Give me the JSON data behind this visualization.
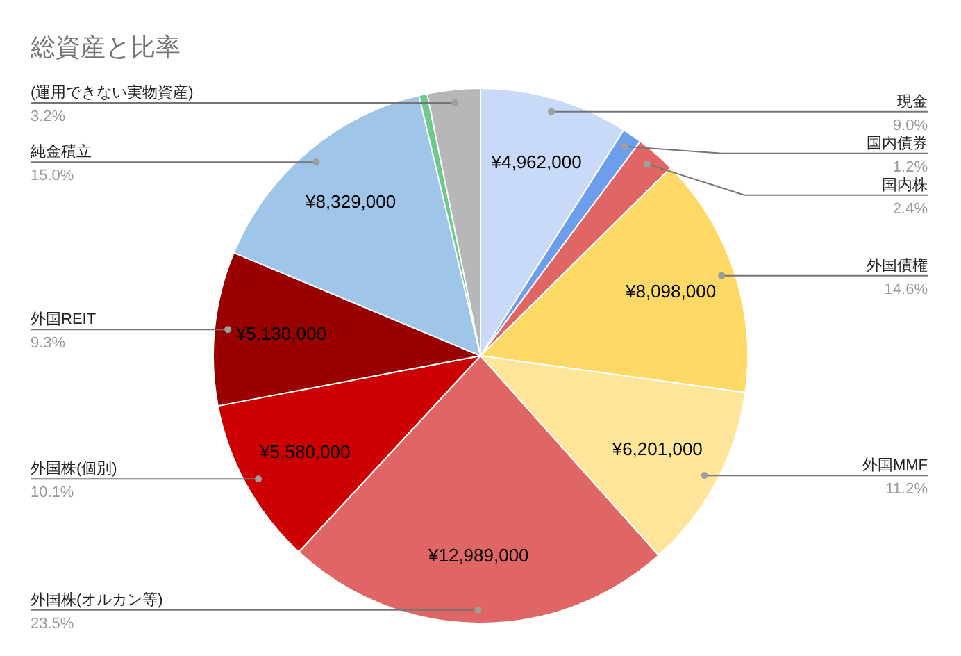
{
  "chart_data": {
    "type": "pie",
    "title": "総資産と比率",
    "categories": [
      "現金",
      "国内債券",
      "国内株",
      "外国債権",
      "外国MMF",
      "外国株(オルカン等)",
      "外国株(個別)",
      "外国REIT",
      "純金積立",
      null,
      "(運用できない実物資産)"
    ],
    "values": [
      9.0,
      1.2,
      2.4,
      14.6,
      11.2,
      23.5,
      10.1,
      9.3,
      15.0,
      0.5,
      3.2
    ],
    "colors": [
      "#c9daf8",
      "#6d9eeb",
      "#e06666",
      "#ffd966",
      "#ffe599",
      "#e06666",
      "#cc0000",
      "#990000",
      "#9fc5e8",
      "#6fc98c",
      "#b7b7b7"
    ],
    "value_labels": [
      "9.0%",
      "1.2%",
      "2.4%",
      "14.6%",
      "11.2%",
      "23.5%",
      "10.1%",
      "9.3%",
      "15.0%",
      null,
      "3.2%"
    ],
    "annotations": [
      {
        "text": "¥4,962,000",
        "x": "現金"
      },
      {
        "text": "¥8,098,000",
        "x": "外国債権"
      },
      {
        "text": "¥6,201,000",
        "x": "外国MMF"
      },
      {
        "text": "¥12,989,000",
        "x": "外国株(オルカン等)"
      },
      {
        "text": "¥5,580,000",
        "x": "外国株(個別)"
      },
      {
        "text": "¥5,130,000",
        "x": "外国REIT"
      },
      {
        "text": "¥8,329,000",
        "x": "純金積立"
      }
    ],
    "legend": false
  }
}
